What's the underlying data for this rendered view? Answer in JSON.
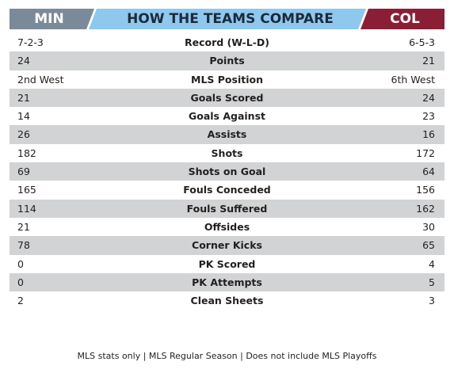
{
  "colors": {
    "left_team": "#7b8a99",
    "center": "#8ec8ef",
    "right_team": "#8a1e35",
    "row_shade": "#d1d3d4"
  },
  "header": {
    "left_team": "MIN",
    "title": "HOW THE TEAMS COMPARE",
    "right_team": "COL"
  },
  "rows": [
    {
      "left": "7-2-3",
      "label": "Record (W-L-D)",
      "right": "6-5-3"
    },
    {
      "left": "24",
      "label": "Points",
      "right": "21"
    },
    {
      "left": "2nd West",
      "label": "MLS Position",
      "right": "6th West"
    },
    {
      "left": "21",
      "label": "Goals Scored",
      "right": "24"
    },
    {
      "left": "14",
      "label": "Goals Against",
      "right": "23"
    },
    {
      "left": "26",
      "label": "Assists",
      "right": "16"
    },
    {
      "left": "182",
      "label": "Shots",
      "right": "172"
    },
    {
      "left": "69",
      "label": "Shots on Goal",
      "right": "64"
    },
    {
      "left": "165",
      "label": "Fouls Conceded",
      "right": "156"
    },
    {
      "left": "114",
      "label": "Fouls Suffered",
      "right": "162"
    },
    {
      "left": "21",
      "label": "Offsides",
      "right": "30"
    },
    {
      "left": "78",
      "label": "Corner Kicks",
      "right": "65"
    },
    {
      "left": "0",
      "label": "PK Scored",
      "right": "4"
    },
    {
      "left": "0",
      "label": "PK Attempts",
      "right": "5"
    },
    {
      "left": "2",
      "label": "Clean Sheets",
      "right": "3"
    }
  ],
  "footer": "MLS stats only | MLS Regular Season | Does not include MLS Playoffs"
}
